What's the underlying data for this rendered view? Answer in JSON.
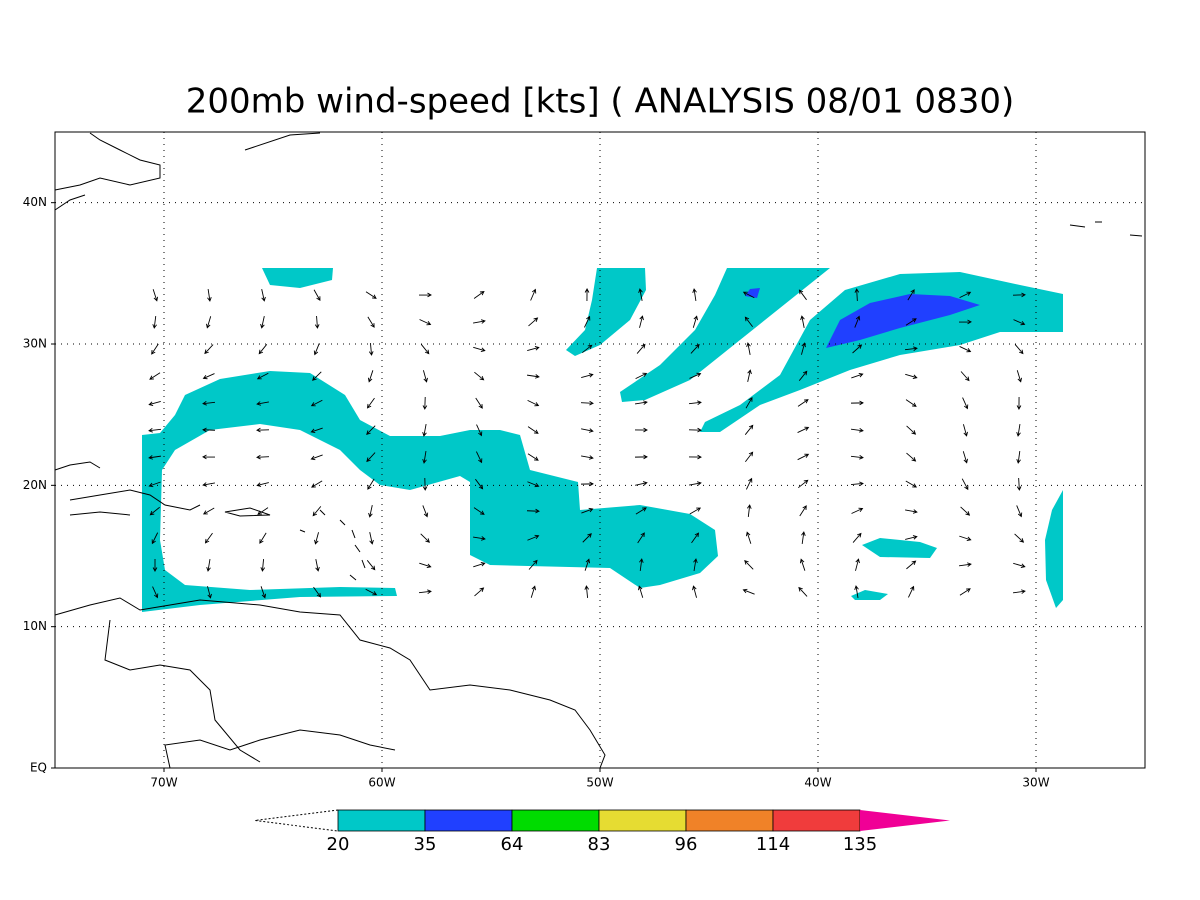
{
  "title": "200mb wind-speed [kts] ( ANALYSIS 08/01 0830)",
  "map": {
    "lon_range": [
      -75,
      -25
    ],
    "lat_range": [
      0,
      45
    ],
    "grid": true,
    "lon_ticks": [
      {
        "value": -70,
        "label": "70W"
      },
      {
        "value": -60,
        "label": "60W"
      },
      {
        "value": -50,
        "label": "50W"
      },
      {
        "value": -40,
        "label": "40W"
      },
      {
        "value": -30,
        "label": "30W"
      }
    ],
    "lat_ticks": [
      {
        "value": 0,
        "label": "EQ"
      },
      {
        "value": 10,
        "label": "10N"
      },
      {
        "value": 20,
        "label": "20N"
      },
      {
        "value": 30,
        "label": "30N"
      },
      {
        "value": 40,
        "label": "40N"
      }
    ]
  },
  "colorbar": {
    "levels": [
      20,
      35,
      64,
      83,
      96,
      114,
      135
    ],
    "colors": [
      "#00c8c8",
      "#2040ff",
      "#00dc00",
      "#e6dc32",
      "#f08228",
      "#f03c3c",
      "#f00096"
    ]
  }
}
